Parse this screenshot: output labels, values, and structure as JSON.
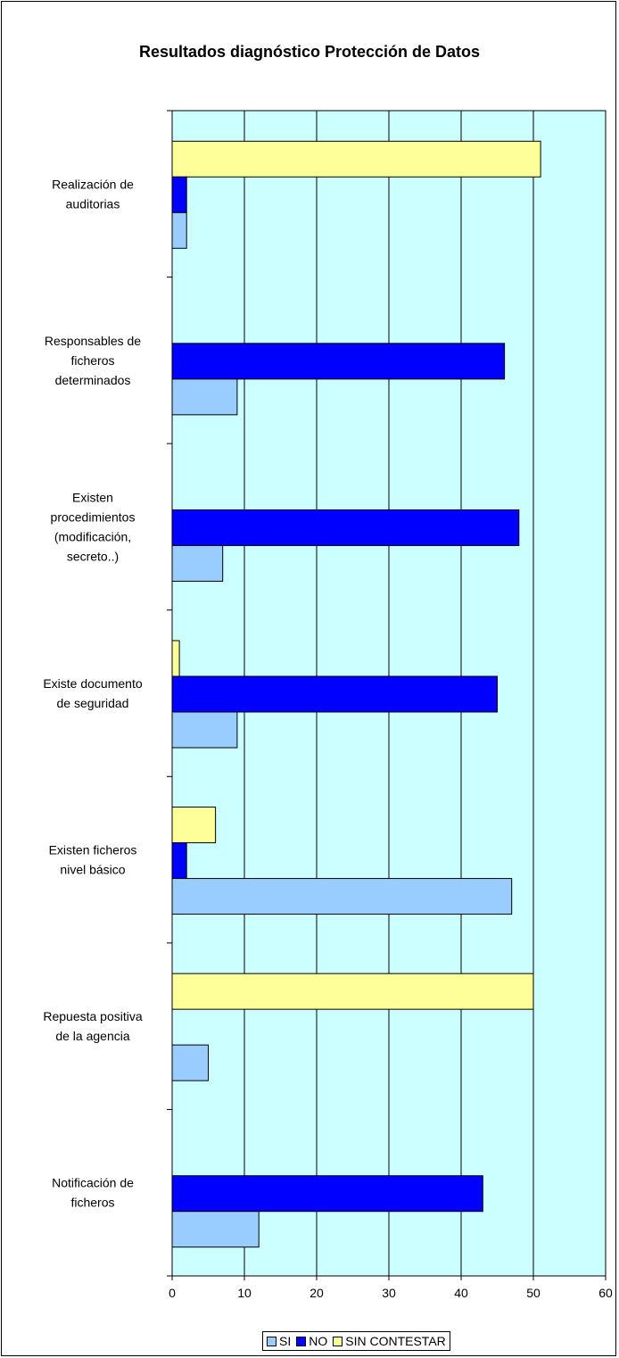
{
  "colors": {
    "plot_bg": "#ccffff",
    "grid": "#000000",
    "si": "#99ccff",
    "no": "#0000ff",
    "sin_contestar": "#ffff99"
  },
  "chart_data": {
    "type": "bar",
    "orientation": "horizontal",
    "title": "Resultados diagnóstico Protección de Datos",
    "categories": [
      [
        "Realización de",
        "auditorias"
      ],
      [
        "Responsables de",
        "ficheros",
        "determinados"
      ],
      [
        "Existen",
        "procedimientos",
        "(modificación,",
        "secreto..)"
      ],
      [
        "Existe documento",
        "de seguridad"
      ],
      [
        "Existen ficheros",
        "nivel básico"
      ],
      [
        "Repuesta positiva",
        "de la agencia"
      ],
      [
        "Notificación de",
        "ficheros"
      ]
    ],
    "series": [
      {
        "name": "SI",
        "color": "#99ccff",
        "values": [
          2,
          9,
          7,
          9,
          47,
          5,
          12
        ]
      },
      {
        "name": "NO",
        "color": "#0000ff",
        "values": [
          2,
          46,
          48,
          45,
          2,
          0,
          43
        ]
      },
      {
        "name": "SIN CONTESTAR",
        "color": "#ffff99",
        "values": [
          51,
          0,
          0,
          1,
          6,
          50,
          0
        ]
      }
    ],
    "xlim": [
      0,
      60
    ],
    "xticks": [
      "0",
      "10",
      "20",
      "30",
      "40",
      "50",
      "60"
    ],
    "grid": true,
    "legend_position": "bottom"
  }
}
